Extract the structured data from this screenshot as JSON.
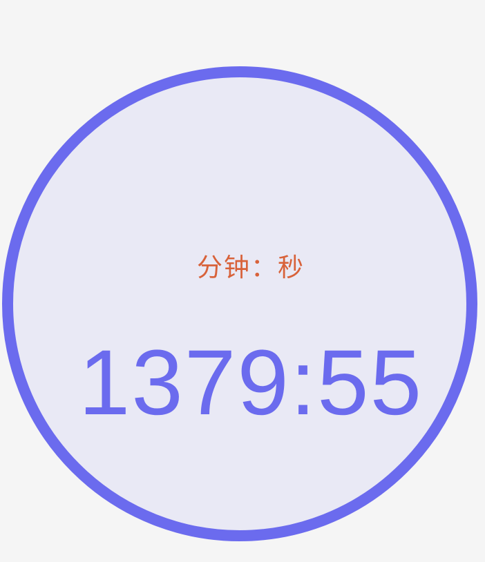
{
  "timer": {
    "unit_label": "分钟：秒",
    "time": "1379:55"
  },
  "colors": {
    "accent": "#6b6bee",
    "label": "#d8623a",
    "circle_fill": "#e9e9f5",
    "background": "#f5f5f5"
  }
}
